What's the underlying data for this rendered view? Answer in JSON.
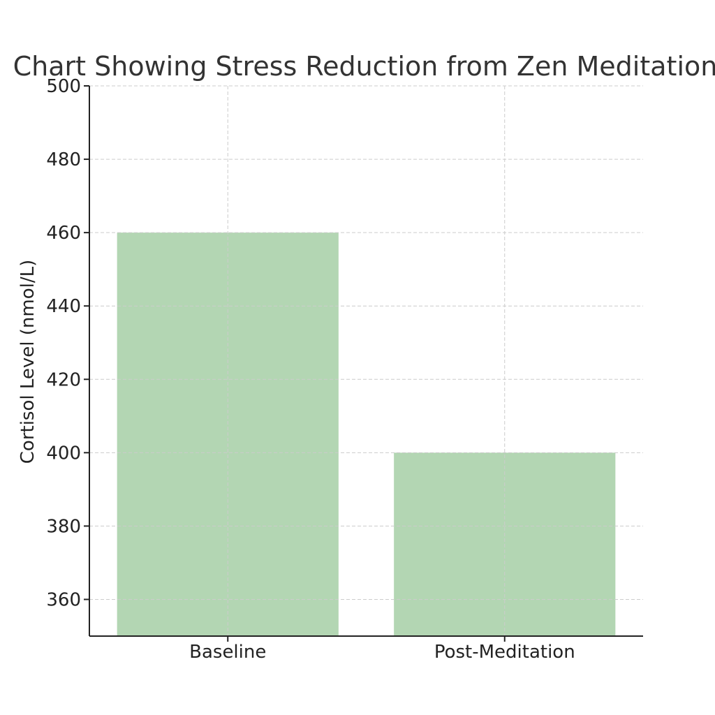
{
  "chart_data": {
    "type": "bar",
    "title": "Chart Showing Stress Reduction from Zen Meditation",
    "xlabel": "",
    "ylabel": "Cortisol Level (nmol/L)",
    "categories": [
      "Baseline",
      "Post-Meditation"
    ],
    "values": [
      460,
      400
    ],
    "ylim": [
      350,
      500
    ],
    "yticks": [
      360,
      380,
      400,
      420,
      440,
      460,
      480,
      500
    ],
    "bar_color": "#b3d6b3",
    "grid": true,
    "legend": "none"
  }
}
